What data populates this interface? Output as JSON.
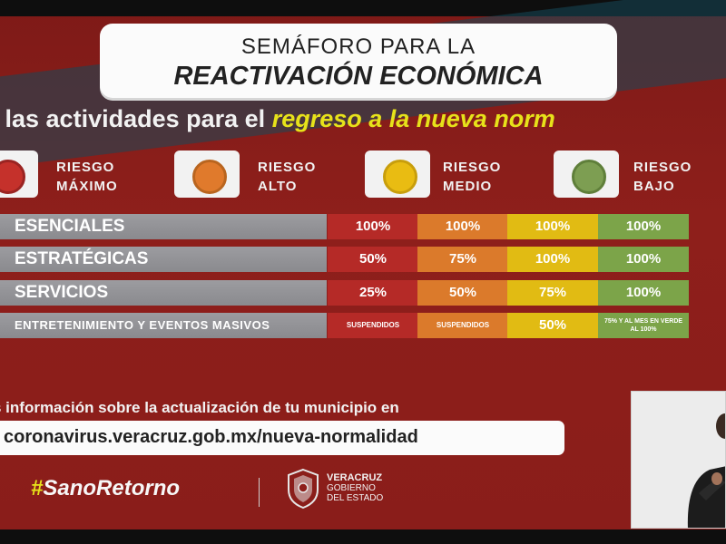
{
  "title": {
    "line1": "SEMÁFORO PARA LA",
    "line2": "REACTIVACIÓN ECONÓMICA"
  },
  "subtitle": {
    "prefix": "ta las actividades para el ",
    "highlight": "regreso a la nueva norm"
  },
  "risk_levels": [
    {
      "line1": "RIESGO",
      "line2": "MÁXIMO",
      "color": "#c5312b"
    },
    {
      "line1": "RIESGO",
      "line2": "ALTO",
      "color": "#e07a2c"
    },
    {
      "line1": "RIESGO",
      "line2": "MEDIO",
      "color": "#e9bc12"
    },
    {
      "line1": "RIESGO",
      "line2": "BAJO",
      "color": "#7d9e52"
    }
  ],
  "rows": [
    {
      "category": "ESENCIALES",
      "values": [
        "100%",
        "100%",
        "100%",
        "100%"
      ]
    },
    {
      "category": "ESTRATÉGICAS",
      "values": [
        "50%",
        "75%",
        "100%",
        "100%"
      ]
    },
    {
      "category": "SERVICIOS",
      "values": [
        "25%",
        "50%",
        "75%",
        "100%"
      ]
    },
    {
      "category": "ENTRETENIMIENTO Y EVENTOS MASIVOS",
      "values": [
        "SUSPENDIDOS",
        "SUSPENDIDOS",
        "50%",
        "75% Y AL MES EN VERDE AL 100%"
      ]
    }
  ],
  "info_text": "s información sobre la actualización de tu municipio en",
  "url_text": "coronavirus.veracruz.gob.mx/nueva-normalidad",
  "hashtag": {
    "mark": "#",
    "text": "SanoRetorno"
  },
  "government": {
    "line1": "VERACRUZ",
    "line2": "GOBIERNO",
    "line3": "DEL ESTADO"
  },
  "colors": {
    "red": "#b52a27",
    "orange": "#db7a2b",
    "yellow": "#e1bb13",
    "green": "#7ca449",
    "accent": "#e7e21a"
  }
}
